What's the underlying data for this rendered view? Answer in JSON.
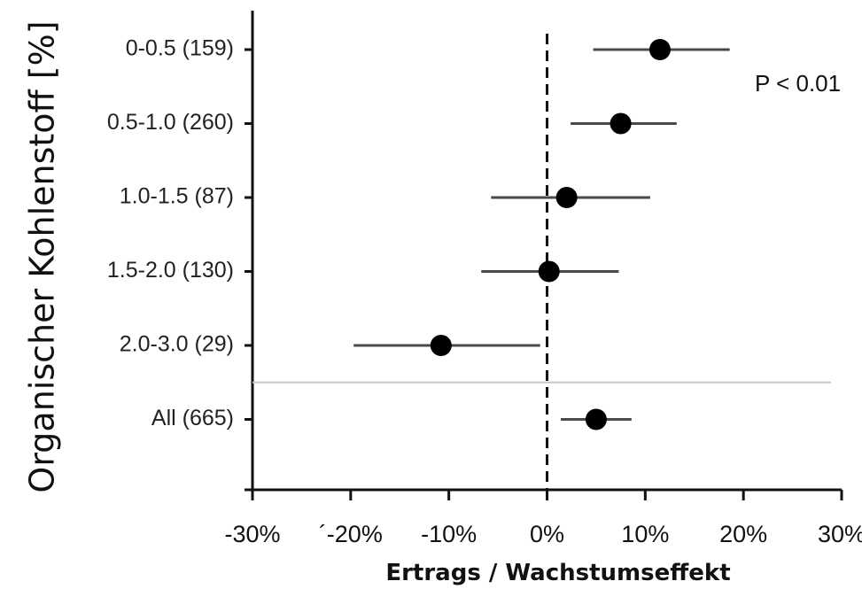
{
  "chart_data": {
    "type": "scatter",
    "subtype": "forest-plot",
    "title": "",
    "xlabel": "Ertrags / Wachstumseffekt",
    "ylabel": "Organischer Kohlenstoff [%]",
    "xlim": [
      -30,
      30
    ],
    "x_ticks": [
      -30,
      -20,
      -10,
      0,
      10,
      20,
      30
    ],
    "x_tick_labels": [
      "-30%",
      "´-20%",
      "-10%",
      "0%",
      "10%",
      "20%",
      "30%"
    ],
    "reference_line": 0,
    "annotation": "P < 0.01",
    "grid": false,
    "legend": "none",
    "categories": [
      "0-0.5 (159)",
      "0.5-1.0 (260)",
      "1.0-1.5 (87)",
      "1.5-2.0 (130)",
      "2.0-3.0 (29)",
      "All (665)"
    ],
    "estimates": [
      11.5,
      7.5,
      2.0,
      0.2,
      -10.8,
      5.0
    ],
    "ci_lower": [
      4.7,
      2.4,
      -5.7,
      -6.7,
      -19.7,
      1.4
    ],
    "ci_upper": [
      18.6,
      13.2,
      10.5,
      7.3,
      -0.7,
      8.6
    ],
    "separator_after_index": 4
  }
}
